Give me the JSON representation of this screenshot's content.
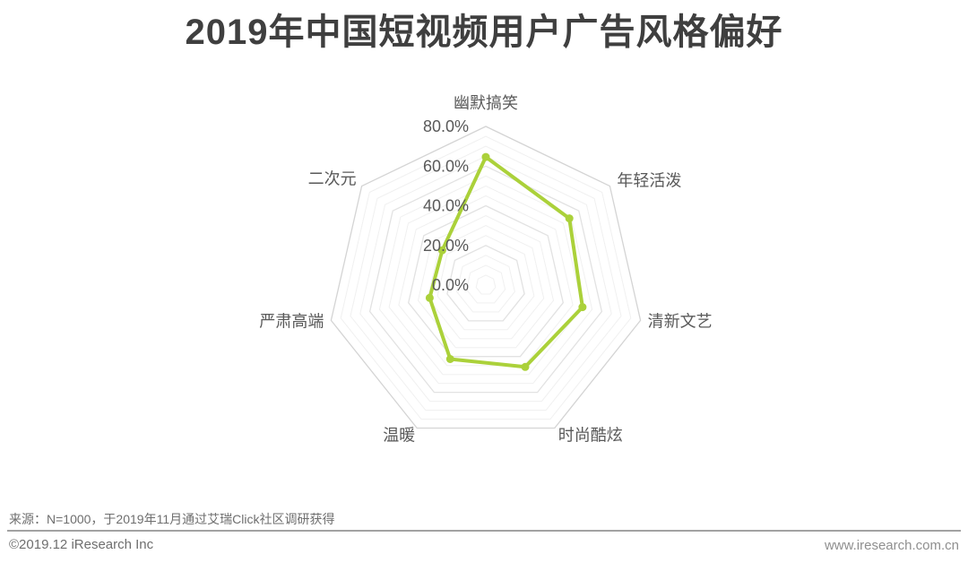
{
  "page": {
    "title": "2019年中国短视频用户广告风格偏好",
    "footer": {
      "source_note": "来源：N=1000，于2019年11月通过艾瑞Click社区调研获得",
      "copyright": "©2019.12 iResearch Inc",
      "website": "www.iresearch.com.cn"
    }
  },
  "colors": {
    "series": "#abd13a",
    "grid_minor": "#f0f0f0",
    "grid_major": "#e2e2e2",
    "grid_outer": "#d4d4d4",
    "title_text": "#3f3f3f",
    "label_text": "#595959",
    "footer_text": "#6e6e6e",
    "website_text": "#8f8f8f",
    "divider": "#a2a2a2"
  },
  "chart_data": {
    "type": "radar",
    "title": "2019年中国短视频用户广告风格偏好",
    "categories": [
      "幽默搞笑",
      "年轻活泼",
      "清新文艺",
      "时尚酷炫",
      "温暖",
      "严肃高端",
      "二次元"
    ],
    "series": [
      {
        "name": "短视频用户广告风格偏好",
        "values": [
          64.6,
          53.9,
          50.0,
          45.8,
          41.4,
          29.0,
          28.1
        ]
      }
    ],
    "unit": "%",
    "ticks": [
      "80.0%",
      "60.0%",
      "40.0%",
      "20.0%",
      "0.0%"
    ],
    "axis_range": [
      0,
      80
    ],
    "tick_step_major": 20,
    "tick_step_minor": 5,
    "grid": true,
    "legend": false,
    "fill": false
  }
}
